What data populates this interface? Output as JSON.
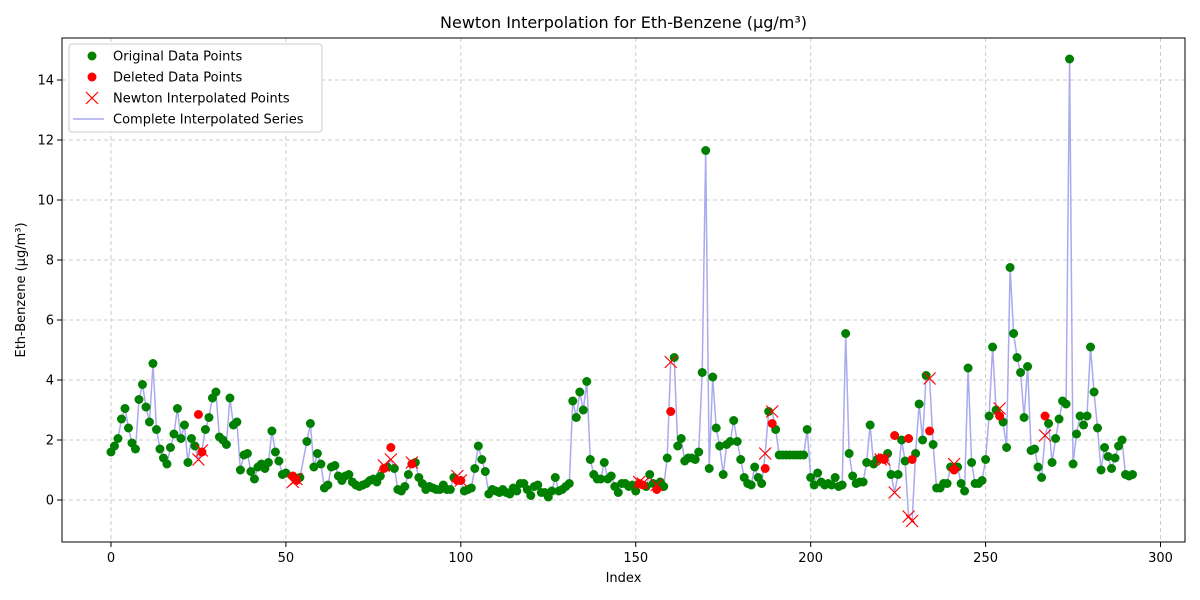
{
  "chart_data": {
    "type": "line",
    "title": "Newton Interpolation for Eth-Benzene (µg/m³)",
    "xlabel": "Index",
    "ylabel": "Eth-Benzene (µg/m³)",
    "xlim": [
      -14,
      307
    ],
    "ylim": [
      -1.4,
      15.4
    ],
    "xticks": [
      0,
      50,
      100,
      150,
      200,
      250,
      300
    ],
    "yticks": [
      0,
      2,
      4,
      6,
      8,
      10,
      12,
      14
    ],
    "grid": true,
    "legend_position": "upper-left",
    "legend": [
      "Original Data Points",
      "Deleted Data Points",
      "Newton Interpolated Points",
      "Complete Interpolated Series"
    ],
    "colors": {
      "original": "#008000",
      "deleted": "#ff0000",
      "interpolated": "#ff0000",
      "series": "#aaaaee"
    },
    "series": [
      {
        "name": "Original Data Points",
        "marker": "circle",
        "points": [
          [
            0,
            1.6
          ],
          [
            1,
            1.8
          ],
          [
            2,
            2.05
          ],
          [
            3,
            2.7
          ],
          [
            4,
            3.05
          ],
          [
            5,
            2.4
          ],
          [
            6,
            1.9
          ],
          [
            7,
            1.7
          ],
          [
            8,
            3.35
          ],
          [
            9,
            3.85
          ],
          [
            10,
            3.1
          ],
          [
            11,
            2.6
          ],
          [
            12,
            4.55
          ],
          [
            13,
            2.35
          ],
          [
            14,
            1.7
          ],
          [
            15,
            1.4
          ],
          [
            16,
            1.2
          ],
          [
            17,
            1.75
          ],
          [
            18,
            2.2
          ],
          [
            19,
            3.05
          ],
          [
            20,
            2.05
          ],
          [
            21,
            2.5
          ],
          [
            22,
            1.25
          ],
          [
            23,
            2.05
          ],
          [
            24,
            1.8
          ],
          [
            27,
            2.35
          ],
          [
            28,
            2.75
          ],
          [
            29,
            3.4
          ],
          [
            30,
            3.6
          ],
          [
            31,
            2.1
          ],
          [
            32,
            2.0
          ],
          [
            33,
            1.85
          ],
          [
            34,
            3.4
          ],
          [
            35,
            2.5
          ],
          [
            36,
            2.6
          ],
          [
            37,
            1.0
          ],
          [
            38,
            1.5
          ],
          [
            39,
            1.55
          ],
          [
            40,
            0.95
          ],
          [
            41,
            0.7
          ],
          [
            42,
            1.1
          ],
          [
            43,
            1.2
          ],
          [
            44,
            1.05
          ],
          [
            45,
            1.25
          ],
          [
            46,
            2.3
          ],
          [
            47,
            1.6
          ],
          [
            48,
            1.3
          ],
          [
            49,
            0.85
          ],
          [
            50,
            0.9
          ],
          [
            54,
            0.75
          ],
          [
            56,
            1.95
          ],
          [
            57,
            2.55
          ],
          [
            58,
            1.1
          ],
          [
            59,
            1.55
          ],
          [
            60,
            1.2
          ],
          [
            61,
            0.4
          ],
          [
            62,
            0.5
          ],
          [
            63,
            1.1
          ],
          [
            64,
            1.15
          ],
          [
            65,
            0.8
          ],
          [
            66,
            0.65
          ],
          [
            67,
            0.8
          ],
          [
            68,
            0.85
          ],
          [
            69,
            0.6
          ],
          [
            70,
            0.5
          ],
          [
            71,
            0.45
          ],
          [
            72,
            0.5
          ],
          [
            73,
            0.55
          ],
          [
            74,
            0.65
          ],
          [
            75,
            0.7
          ],
          [
            76,
            0.6
          ],
          [
            77,
            0.8
          ],
          [
            79,
            1.1
          ],
          [
            81,
            1.05
          ],
          [
            82,
            0.35
          ],
          [
            83,
            0.3
          ],
          [
            84,
            0.45
          ],
          [
            85,
            0.85
          ],
          [
            87,
            1.25
          ],
          [
            88,
            0.75
          ],
          [
            89,
            0.55
          ],
          [
            90,
            0.35
          ],
          [
            91,
            0.45
          ],
          [
            92,
            0.4
          ],
          [
            93,
            0.35
          ],
          [
            94,
            0.35
          ],
          [
            95,
            0.5
          ],
          [
            96,
            0.35
          ],
          [
            97,
            0.35
          ],
          [
            98,
            0.75
          ],
          [
            101,
            0.3
          ],
          [
            102,
            0.35
          ],
          [
            103,
            0.4
          ],
          [
            104,
            1.05
          ],
          [
            105,
            1.8
          ],
          [
            106,
            1.35
          ],
          [
            107,
            0.95
          ],
          [
            108,
            0.2
          ],
          [
            109,
            0.35
          ],
          [
            110,
            0.3
          ],
          [
            111,
            0.25
          ],
          [
            112,
            0.35
          ],
          [
            113,
            0.25
          ],
          [
            114,
            0.2
          ],
          [
            115,
            0.4
          ],
          [
            116,
            0.3
          ],
          [
            117,
            0.55
          ],
          [
            118,
            0.55
          ],
          [
            119,
            0.35
          ],
          [
            120,
            0.15
          ],
          [
            121,
            0.45
          ],
          [
            122,
            0.5
          ],
          [
            123,
            0.25
          ],
          [
            124,
            0.25
          ],
          [
            125,
            0.1
          ],
          [
            126,
            0.3
          ],
          [
            127,
            0.75
          ],
          [
            128,
            0.3
          ],
          [
            129,
            0.35
          ],
          [
            130,
            0.45
          ],
          [
            131,
            0.55
          ],
          [
            132,
            3.3
          ],
          [
            133,
            2.75
          ],
          [
            134,
            3.6
          ],
          [
            135,
            3.0
          ],
          [
            136,
            3.95
          ],
          [
            137,
            1.35
          ],
          [
            138,
            0.85
          ],
          [
            139,
            0.7
          ],
          [
            140,
            0.7
          ],
          [
            141,
            1.25
          ],
          [
            142,
            0.7
          ],
          [
            143,
            0.8
          ],
          [
            144,
            0.45
          ],
          [
            145,
            0.25
          ],
          [
            146,
            0.55
          ],
          [
            147,
            0.55
          ],
          [
            148,
            0.45
          ],
          [
            149,
            0.5
          ],
          [
            150,
            0.3
          ],
          [
            153,
            0.45
          ],
          [
            154,
            0.85
          ],
          [
            155,
            0.55
          ],
          [
            157,
            0.6
          ],
          [
            158,
            0.45
          ],
          [
            159,
            1.4
          ],
          [
            161,
            4.75
          ],
          [
            162,
            1.8
          ],
          [
            163,
            2.05
          ],
          [
            164,
            1.3
          ],
          [
            165,
            1.4
          ],
          [
            166,
            1.4
          ],
          [
            167,
            1.35
          ],
          [
            168,
            1.6
          ],
          [
            169,
            4.25
          ],
          [
            170,
            11.65
          ],
          [
            171,
            1.05
          ],
          [
            172,
            4.1
          ],
          [
            173,
            2.4
          ],
          [
            174,
            1.8
          ],
          [
            175,
            0.85
          ],
          [
            176,
            1.85
          ],
          [
            177,
            1.95
          ],
          [
            178,
            2.65
          ],
          [
            179,
            1.95
          ],
          [
            180,
            1.35
          ],
          [
            181,
            0.75
          ],
          [
            182,
            0.55
          ],
          [
            183,
            0.5
          ],
          [
            184,
            1.1
          ],
          [
            185,
            0.75
          ],
          [
            186,
            0.55
          ],
          [
            188,
            2.95
          ],
          [
            190,
            2.35
          ],
          [
            191,
            1.5
          ],
          [
            192,
            1.5
          ],
          [
            193,
            1.5
          ],
          [
            194,
            1.5
          ],
          [
            195,
            1.5
          ],
          [
            196,
            1.5
          ],
          [
            197,
            1.5
          ],
          [
            198,
            1.5
          ],
          [
            199,
            2.35
          ],
          [
            200,
            0.75
          ],
          [
            201,
            0.5
          ],
          [
            202,
            0.9
          ],
          [
            203,
            0.6
          ],
          [
            204,
            0.5
          ],
          [
            205,
            0.55
          ],
          [
            206,
            0.5
          ],
          [
            207,
            0.75
          ],
          [
            208,
            0.45
          ],
          [
            209,
            0.5
          ],
          [
            210,
            5.55
          ],
          [
            211,
            1.55
          ],
          [
            212,
            0.8
          ],
          [
            213,
            0.55
          ],
          [
            214,
            0.6
          ],
          [
            215,
            0.6
          ],
          [
            216,
            1.25
          ],
          [
            217,
            2.5
          ],
          [
            218,
            1.2
          ],
          [
            219,
            1.35
          ],
          [
            222,
            1.55
          ],
          [
            223,
            0.85
          ],
          [
            225,
            0.85
          ],
          [
            226,
            2.0
          ],
          [
            227,
            1.3
          ],
          [
            230,
            1.55
          ],
          [
            231,
            3.2
          ],
          [
            232,
            2.0
          ],
          [
            233,
            4.15
          ],
          [
            235,
            1.85
          ],
          [
            236,
            0.4
          ],
          [
            237,
            0.4
          ],
          [
            238,
            0.55
          ],
          [
            239,
            0.55
          ],
          [
            240,
            1.1
          ],
          [
            242,
            1.1
          ],
          [
            243,
            0.55
          ],
          [
            244,
            0.3
          ],
          [
            245,
            4.4
          ],
          [
            246,
            1.25
          ],
          [
            247,
            0.55
          ],
          [
            248,
            0.55
          ],
          [
            249,
            0.65
          ],
          [
            250,
            1.35
          ],
          [
            251,
            2.8
          ],
          [
            252,
            5.1
          ],
          [
            253,
            3.0
          ],
          [
            255,
            2.6
          ],
          [
            256,
            1.75
          ],
          [
            257,
            7.75
          ],
          [
            258,
            5.55
          ],
          [
            259,
            4.75
          ],
          [
            260,
            4.25
          ],
          [
            261,
            2.75
          ],
          [
            262,
            4.45
          ],
          [
            263,
            1.65
          ],
          [
            264,
            1.7
          ],
          [
            265,
            1.1
          ],
          [
            266,
            0.75
          ],
          [
            268,
            2.55
          ],
          [
            269,
            1.25
          ],
          [
            270,
            2.05
          ],
          [
            271,
            2.7
          ],
          [
            272,
            3.3
          ],
          [
            273,
            3.2
          ],
          [
            274,
            14.7
          ],
          [
            275,
            1.2
          ],
          [
            276,
            2.2
          ],
          [
            277,
            2.8
          ],
          [
            278,
            2.5
          ],
          [
            279,
            2.8
          ],
          [
            280,
            5.1
          ],
          [
            281,
            3.6
          ],
          [
            282,
            2.4
          ],
          [
            283,
            1.0
          ],
          [
            284,
            1.75
          ],
          [
            285,
            1.45
          ],
          [
            286,
            1.05
          ],
          [
            287,
            1.4
          ],
          [
            288,
            1.8
          ],
          [
            289,
            2.0
          ],
          [
            290,
            0.85
          ],
          [
            291,
            0.8
          ],
          [
            292,
            0.85
          ]
        ]
      },
      {
        "name": "Deleted Data Points",
        "marker": "circle",
        "points": [
          [
            25,
            2.85
          ],
          [
            26,
            1.6
          ],
          [
            52,
            0.8
          ],
          [
            53,
            0.65
          ],
          [
            78,
            1.05
          ],
          [
            80,
            1.75
          ],
          [
            86,
            1.2
          ],
          [
            99,
            0.65
          ],
          [
            100,
            0.65
          ],
          [
            151,
            0.55
          ],
          [
            152,
            0.5
          ],
          [
            156,
            0.35
          ],
          [
            160,
            2.95
          ],
          [
            187,
            1.05
          ],
          [
            189,
            2.55
          ],
          [
            220,
            1.4
          ],
          [
            221,
            1.35
          ],
          [
            224,
            2.15
          ],
          [
            228,
            2.05
          ],
          [
            229,
            1.35
          ],
          [
            234,
            2.3
          ],
          [
            241,
            1.0
          ],
          [
            254,
            2.8
          ],
          [
            267,
            2.8
          ]
        ]
      },
      {
        "name": "Newton Interpolated Points",
        "marker": "x",
        "points": [
          [
            25,
            1.35
          ],
          [
            26,
            1.65
          ],
          [
            52,
            0.6
          ],
          [
            53,
            0.7
          ],
          [
            78,
            1.15
          ],
          [
            80,
            1.35
          ],
          [
            86,
            1.25
          ],
          [
            99,
            0.8
          ],
          [
            100,
            0.65
          ],
          [
            151,
            0.6
          ],
          [
            152,
            0.55
          ],
          [
            156,
            0.5
          ],
          [
            160,
            4.6
          ],
          [
            187,
            1.55
          ],
          [
            189,
            2.95
          ],
          [
            220,
            1.35
          ],
          [
            221,
            1.35
          ],
          [
            224,
            0.25
          ],
          [
            228,
            -0.55
          ],
          [
            229,
            -0.7
          ],
          [
            234,
            4.05
          ],
          [
            241,
            1.2
          ],
          [
            254,
            3.05
          ],
          [
            267,
            2.15
          ]
        ]
      }
    ]
  }
}
